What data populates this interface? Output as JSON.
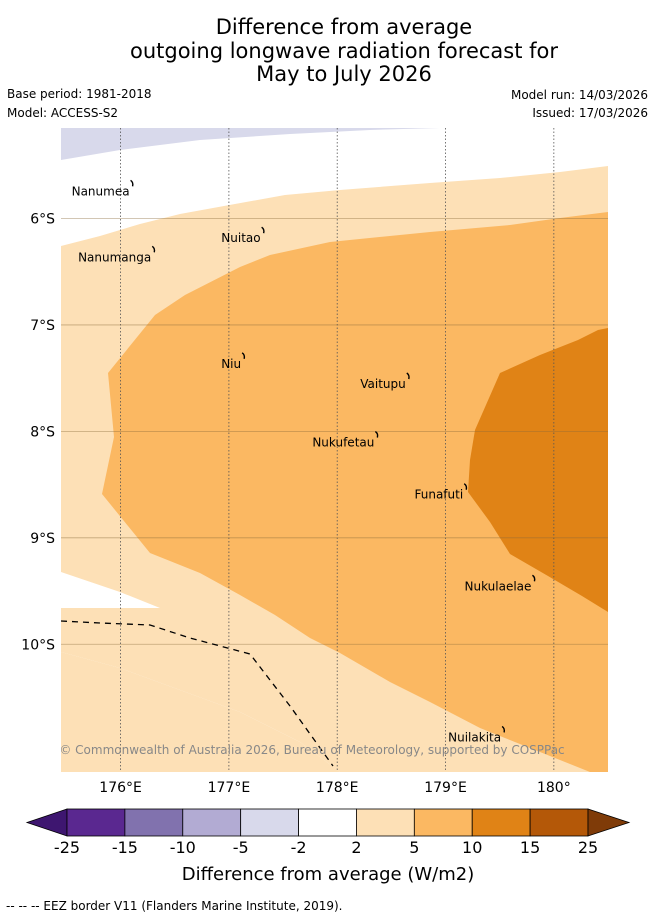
{
  "title": {
    "line1": "Difference from average",
    "line2": "outgoing longwave radiation forecast for",
    "line3": "May to July 2026"
  },
  "meta": {
    "base_period": "Base period: 1981-2018",
    "model": "Model: ACCESS-S2",
    "model_run": "Model run: 14/03/2026",
    "issued": "Issued: 17/03/2026"
  },
  "map": {
    "lon_range": [
      175.45,
      180.5
    ],
    "lat_range": [
      -11.2,
      -5.15
    ],
    "lon_ticks": [
      {
        "value": 176,
        "label": "176°E"
      },
      {
        "value": 177,
        "label": "177°E"
      },
      {
        "value": 178,
        "label": "178°E"
      },
      {
        "value": 179,
        "label": "179°E"
      },
      {
        "value": 180,
        "label": "180°"
      }
    ],
    "lat_ticks": [
      {
        "value": -6,
        "label": "6°S"
      },
      {
        "value": -7,
        "label": "7°S"
      },
      {
        "value": -8,
        "label": "8°S"
      },
      {
        "value": -9,
        "label": "9°S"
      },
      {
        "value": -10,
        "label": "10°S"
      }
    ],
    "islands": [
      {
        "name": "Nanumea",
        "lon": 176.12,
        "lat": -5.67
      },
      {
        "name": "Nuitao",
        "lon": 177.33,
        "lat": -6.11
      },
      {
        "name": "Nanumanga",
        "lon": 176.32,
        "lat": -6.29
      },
      {
        "name": "Niu",
        "lon": 177.15,
        "lat": -7.29
      },
      {
        "name": "Vaitupu",
        "lon": 178.67,
        "lat": -7.48
      },
      {
        "name": "Nukufetau",
        "lon": 178.38,
        "lat": -8.03
      },
      {
        "name": "Funafuti",
        "lon": 179.2,
        "lat": -8.52
      },
      {
        "name": "Nukulaelae",
        "lon": 179.83,
        "lat": -9.38
      },
      {
        "name": "Nuilakita",
        "lon": 179.55,
        "lat": -10.8
      }
    ],
    "copyright": "© Commonwealth of Australia 2026, Bureau of Meteorology, supported by COSPPac",
    "colors": {
      "c_neg5_neg2": "#d8d9eb",
      "c_2_5": "#fde0b6",
      "c_5_10": "#fbb862",
      "c_10_15": "#e08316"
    }
  },
  "colorbar": {
    "label": "Difference from average (W/m2)",
    "ticks": [
      "-25",
      "-15",
      "-10",
      "-5",
      "-2",
      "2",
      "5",
      "10",
      "15",
      "25"
    ],
    "colors": [
      "#3e1670",
      "#5a2890",
      "#8172ae",
      "#b2abd3",
      "#d8d9eb",
      "#ffffff",
      "#fde0b6",
      "#fbb862",
      "#e08316",
      "#b45808",
      "#7f3b08"
    ]
  },
  "footnote": "-- -- -- EEZ border V11 (Flanders Marine Institute, 2019)."
}
